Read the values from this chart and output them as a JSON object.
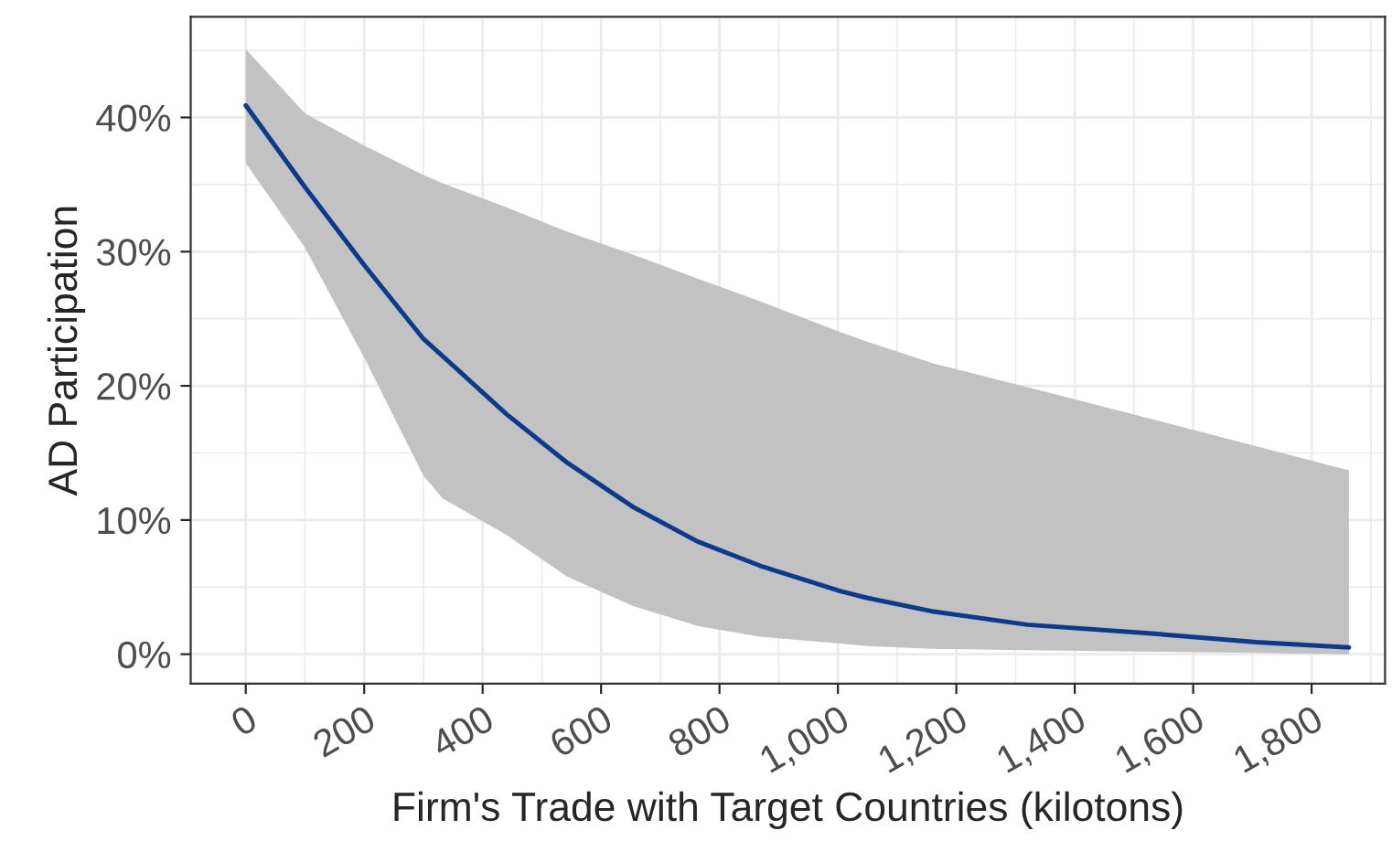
{
  "chart_data": {
    "type": "line",
    "xlabel": "Firm's Trade with Target Countries (kilotons)",
    "ylabel": "AD Participation",
    "series": [
      {
        "color": "#0d3b8c",
        "x": [
          0,
          100,
          200,
          300,
          333,
          440,
          542,
          653,
          763,
          868,
          1004,
          1049,
          1159,
          1320,
          1514,
          1707,
          1863
        ],
        "values": [
          40.9,
          34.8,
          29.0,
          23.5,
          22.2,
          17.9,
          14.3,
          11.0,
          8.4,
          6.6,
          4.7,
          4.2,
          3.2,
          2.2,
          1.6,
          0.9,
          0.5
        ],
        "upper": [
          45.1,
          40.3,
          37.9,
          35.7,
          35.1,
          33.3,
          31.5,
          29.8,
          28.0,
          26.3,
          24.0,
          23.3,
          21.7,
          19.9,
          17.7,
          15.5,
          13.7
        ],
        "lower": [
          36.6,
          30.3,
          22.1,
          13.3,
          11.6,
          8.9,
          5.8,
          3.6,
          2.1,
          1.3,
          0.8,
          0.6,
          0.4,
          0.3,
          0.2,
          0.1,
          0.0
        ]
      }
    ],
    "xlim": [
      -93,
      1924
    ],
    "ylim": [
      -2.2,
      47.5
    ],
    "xticks": [
      {
        "value": 0,
        "label": "0"
      },
      {
        "value": 200,
        "label": "200"
      },
      {
        "value": 400,
        "label": "400"
      },
      {
        "value": 600,
        "label": "600"
      },
      {
        "value": 800,
        "label": "800"
      },
      {
        "value": 1000,
        "label": "1,000"
      },
      {
        "value": 1200,
        "label": "1,200"
      },
      {
        "value": 1400,
        "label": "1,400"
      },
      {
        "value": 1600,
        "label": "1,600"
      },
      {
        "value": 1800,
        "label": "1,800"
      }
    ],
    "yticks": [
      {
        "value": 0,
        "label": "0%"
      },
      {
        "value": 10,
        "label": "10%"
      },
      {
        "value": 20,
        "label": "20%"
      },
      {
        "value": 30,
        "label": "30%"
      },
      {
        "value": 40,
        "label": "40%"
      }
    ],
    "grid": true,
    "marker": "none",
    "line_style": "solid"
  }
}
